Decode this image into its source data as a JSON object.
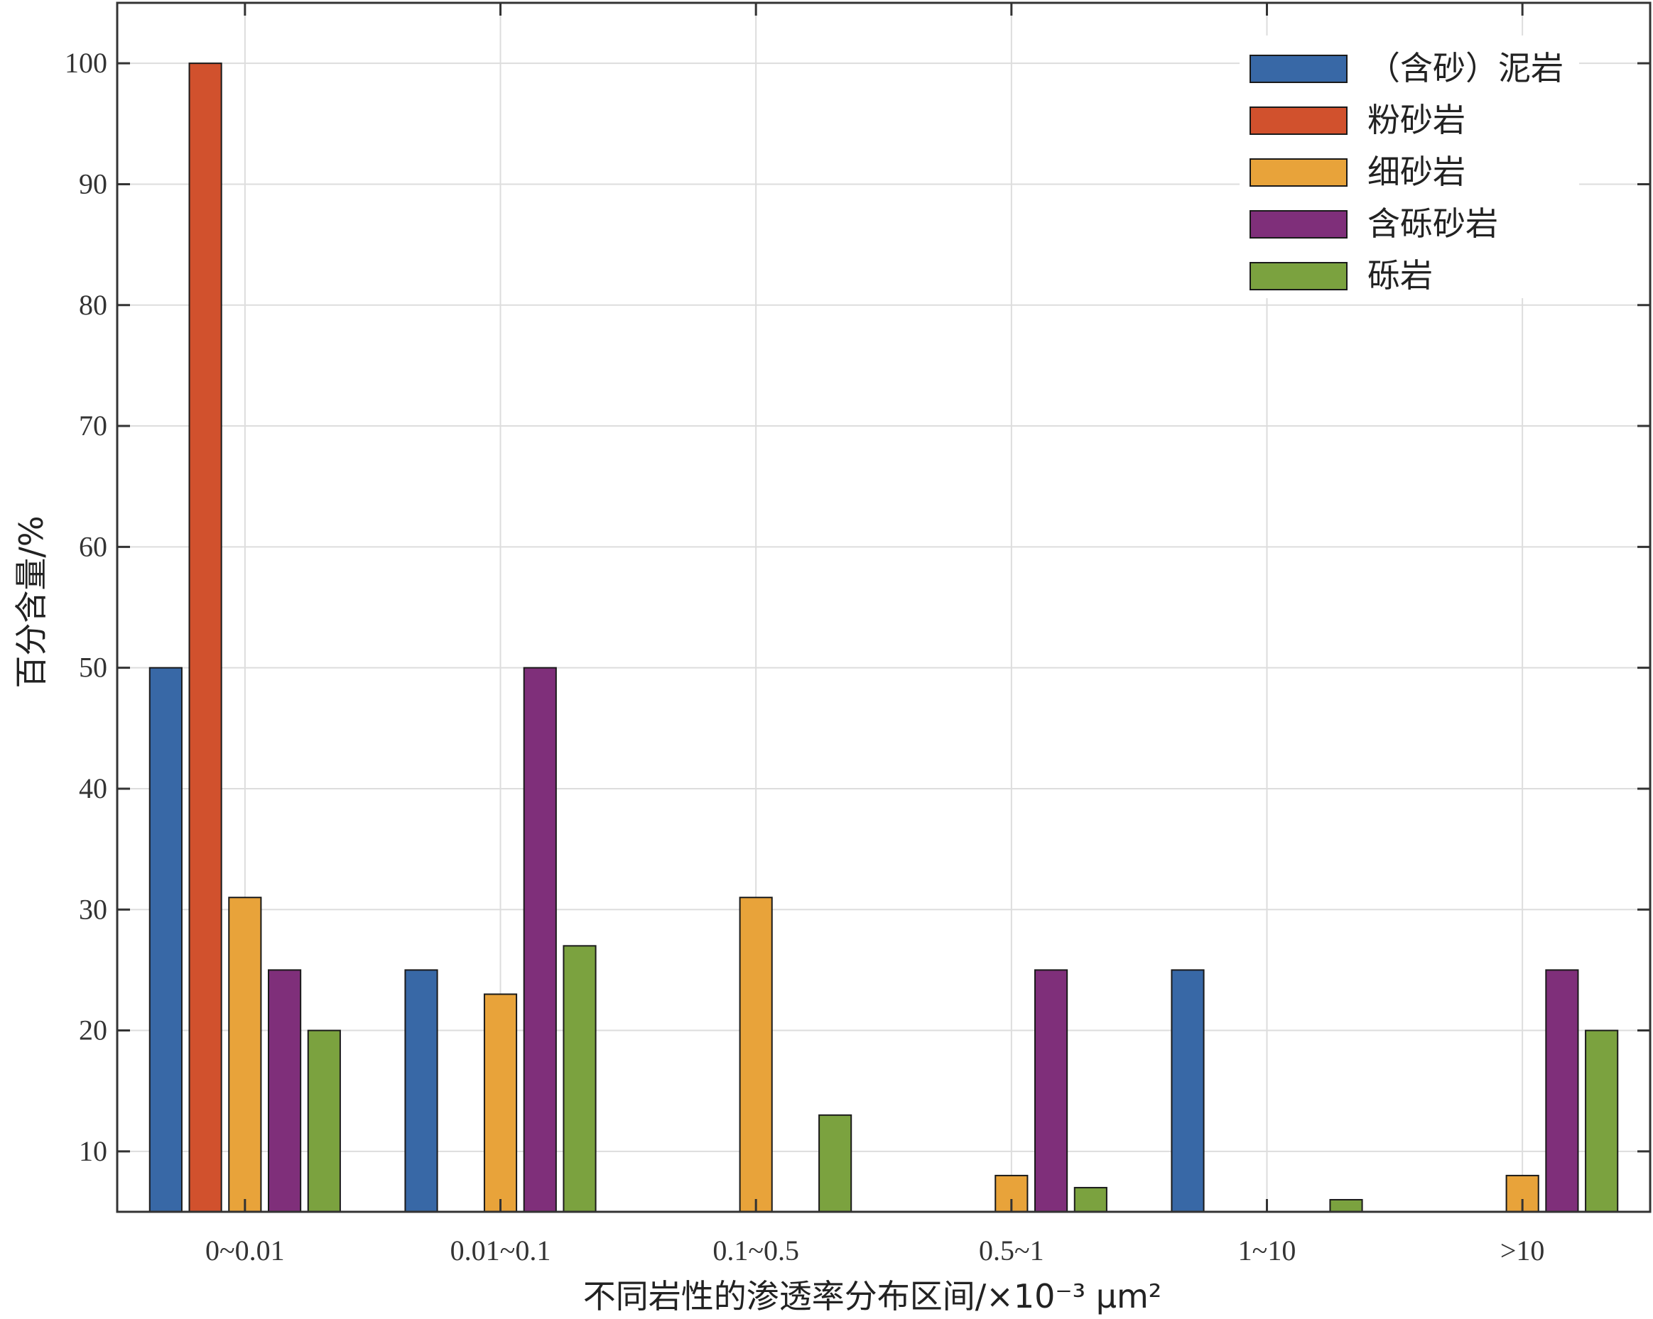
{
  "chart_data": {
    "type": "bar",
    "categories": [
      "0~0.01",
      "0.01~0.1",
      "0.1~0.5",
      "0.5~1",
      "1~10",
      ">10"
    ],
    "series": [
      {
        "name": "（含砂）泥岩",
        "color": "#3868a6",
        "values": [
          50,
          25,
          0,
          0,
          25,
          0
        ]
      },
      {
        "name": "粉砂岩",
        "color": "#d1512d",
        "values": [
          100,
          0,
          0,
          0,
          0,
          0
        ]
      },
      {
        "name": "细砂岩",
        "color": "#e8a33a",
        "values": [
          31,
          23,
          31,
          8,
          0,
          8
        ]
      },
      {
        "name": "含砾砂岩",
        "color": "#7f2f7a",
        "values": [
          25,
          50,
          0,
          25,
          0,
          25
        ]
      },
      {
        "name": "砾岩",
        "color": "#7ba23f",
        "values": [
          20,
          27,
          13,
          7,
          6,
          20
        ]
      }
    ],
    "xlabel": "不同岩性的渗透率分布区间/×10⁻³ μm²",
    "ylabel": "百分含量/%",
    "ylim": [
      5,
      105
    ],
    "yticks": [
      "10",
      "20",
      "30",
      "40",
      "50",
      "60",
      "70",
      "80",
      "90",
      "100"
    ],
    "grid": true,
    "legend_position": "top-right",
    "title": ""
  }
}
